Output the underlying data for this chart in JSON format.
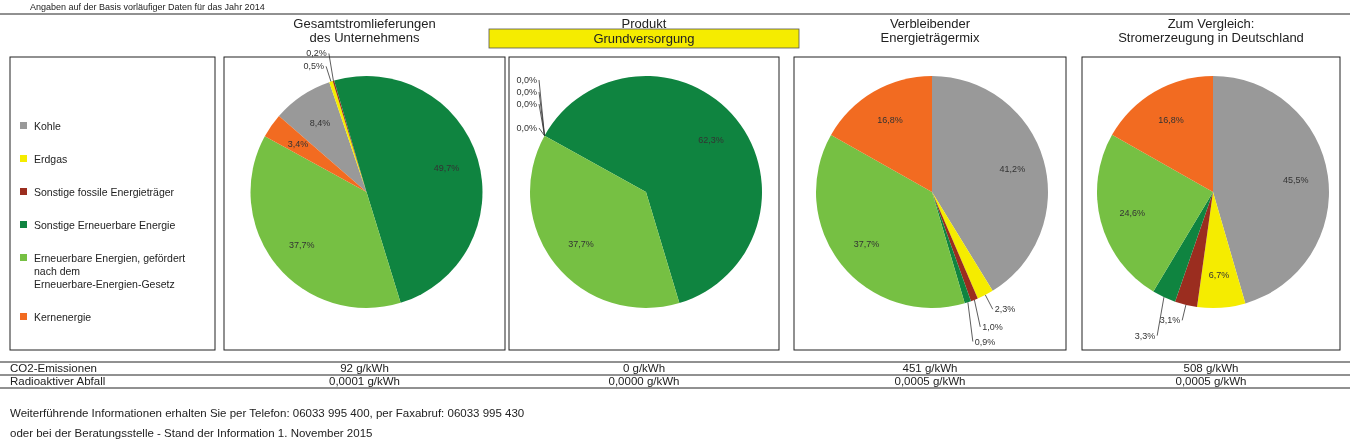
{
  "chart_data": [
    {
      "type": "pie",
      "title": "Gesamtstromlieferungen\ndes Unternehmens",
      "legend": "left",
      "categories": [
        "Kohle",
        "Erdgas",
        "Sonstige fossile Energieträger",
        "Sonstige Erneuerbare Energie",
        "Erneuerbare Energien, gefördert nach dem Erneuerbare-Energien-Gesetz",
        "Kernenergie"
      ],
      "values": [
        8.4,
        0.5,
        0.2,
        49.7,
        37.7,
        3.4
      ],
      "value_labels": [
        "8,4%",
        "0,5%",
        "0,2%",
        "49,7%",
        "37,7%",
        "3,4%"
      ],
      "colors": [
        "#999999",
        "#f5ec00",
        "#9b2d1f",
        "#0f8440",
        "#76c043",
        "#f26b21"
      ],
      "annotations": [
        "92 g/kWh",
        "0,0001 g/kWh"
      ]
    },
    {
      "type": "pie",
      "title": "Produkt",
      "subtitle": "Grundversorgung",
      "categories": [
        null,
        null,
        null,
        null,
        null,
        null
      ],
      "values": [
        0,
        0,
        0,
        62.3,
        37.7,
        0
      ],
      "value_labels": [
        "0,0%",
        "0,0%",
        "0,0%",
        "62,3%",
        "37,7%",
        "0,0%"
      ],
      "colors": [
        "#999999",
        "#f5ec00",
        "#9b2d1f",
        "#0f8440",
        "#76c043",
        "#f26b21"
      ],
      "annotations": [
        "0 g/kWh",
        "0,0000 g/kWh"
      ]
    },
    {
      "type": "pie",
      "title": "Verbleibender\nEnergieträgermix",
      "categories": [
        null,
        null,
        null,
        null,
        null,
        null
      ],
      "values": [
        41.2,
        2.3,
        1.0,
        0.9,
        37.7,
        16.8
      ],
      "value_labels": [
        "41,2%",
        "2,3%",
        "1,0%",
        "0,9%",
        "37,7%",
        "16,8%"
      ],
      "colors": [
        "#999999",
        "#f5ec00",
        "#9b2d1f",
        "#0f8440",
        "#76c043",
        "#f26b21"
      ],
      "annotations": [
        "451 g/kWh",
        "0,0005 g/kWh"
      ]
    },
    {
      "type": "pie",
      "title": "Zum Vergleich:\nStromerzeugung in Deutschland",
      "categories": [
        null,
        null,
        null,
        null,
        null,
        null
      ],
      "values": [
        45.5,
        6.7,
        3.1,
        3.3,
        24.6,
        16.8
      ],
      "value_labels": [
        "45,5%",
        "6,7%",
        "3,1%",
        "3,3%",
        "24,6%",
        "16,8%"
      ],
      "colors": [
        "#999999",
        "#f5ec00",
        "#9b2d1f",
        "#0f8440",
        "#76c043",
        "#f26b21"
      ],
      "annotations": [
        "508 g/kWh",
        "0,0005 g/kWh"
      ]
    },
    {
      "type": "other",
      "annotations": [
        "Angaben auf der Basis vorläufiger Daten für das Jahr 2014",
        "CO2-Emissionen",
        "Radioaktiver Abfall",
        "Weiterführende Informationen erhalten Sie per Telefon: 06033 995 400, per Faxabruf: 06033 995 430",
        "oder bei der Beratungsstelle - Stand der Information 1. November 2015"
      ]
    }
  ]
}
